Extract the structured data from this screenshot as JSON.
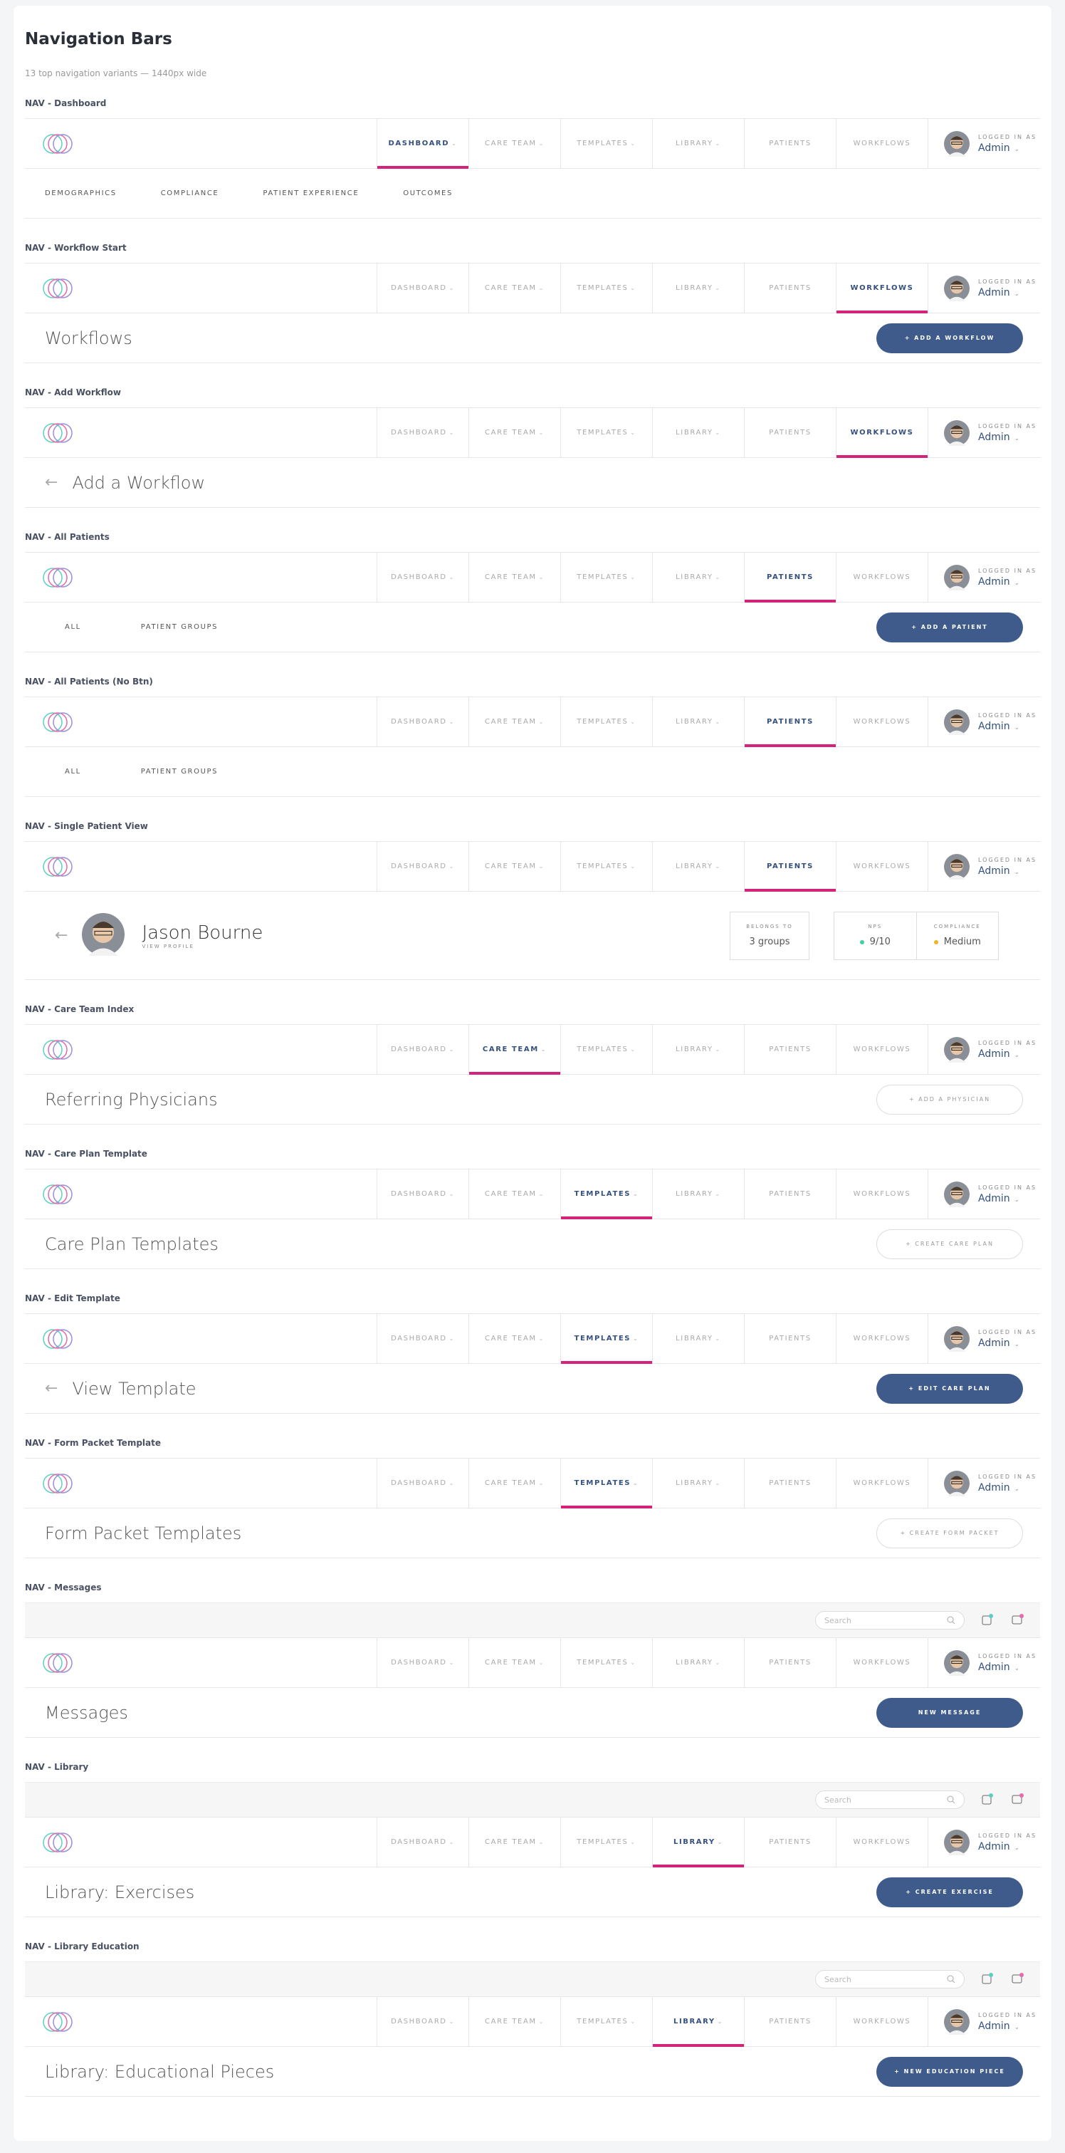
{
  "header": {
    "title": "Navigation Bars",
    "subtitle": "13 top navigation variants — 1440px wide"
  },
  "nav": {
    "tabs": [
      "DASHBOARD",
      "CARE TEAM",
      "TEMPLATES",
      "LIBRARY",
      "PATIENTS",
      "WORKFLOWS"
    ],
    "user_caption": "LOGGED IN AS",
    "user_name": "Admin",
    "search": "Search"
  },
  "sections": [
    {
      "label": "NAV - Dashboard",
      "active": 0,
      "subtabs": [
        "DEMOGRAPHICS",
        "COMPLIANCE",
        "PATIENT EXPERIENCE",
        "OUTCOMES"
      ]
    },
    {
      "label": "NAV - Workflow Start",
      "active": 5,
      "heading": "Workflows",
      "button": {
        "label": "+ ADD A WORKFLOW",
        "style": "filled"
      }
    },
    {
      "label": "NAV - Add Workflow",
      "active": 5,
      "back": true,
      "heading": "Add a Workflow"
    },
    {
      "label": "NAV - All Patients",
      "active": 4,
      "subtabs": [
        "ALL",
        "PATIENT GROUPS"
      ],
      "button": {
        "label": "+ ADD A PATIENT",
        "style": "filled"
      }
    },
    {
      "label": "NAV - All Patients (No Btn)",
      "active": 4,
      "subtabs": [
        "ALL",
        "PATIENT GROUPS"
      ]
    },
    {
      "label": "NAV - Single Patient View",
      "active": 4,
      "patient": {
        "name": "Jason Bourne",
        "link": "VIEW PROFILE",
        "belongs_caption": "BELONGS TO",
        "belongs": "3 groups",
        "nps_caption": "NPS",
        "nps": "9/10",
        "compliance_caption": "COMPLIANCE",
        "compliance": "Medium"
      }
    },
    {
      "label": "NAV - Care Team Index",
      "active": 1,
      "heading": "Referring Physicians",
      "button": {
        "label": "+ ADD A PHYSICIAN",
        "style": "outline"
      }
    },
    {
      "label": "NAV - Care Plan Template",
      "active": 2,
      "heading": "Care Plan Templates",
      "button": {
        "label": "+ CREATE CARE PLAN",
        "style": "outline"
      }
    },
    {
      "label": "NAV - Edit Template",
      "active": 2,
      "back": true,
      "heading": "View Template",
      "button": {
        "label": "+ EDIT CARE PLAN",
        "style": "filled"
      }
    },
    {
      "label": "NAV - Form Packet Template",
      "active": 2,
      "heading": "Form Packet Templates",
      "button": {
        "label": "+ CREATE FORM PACKET",
        "style": "outline"
      }
    },
    {
      "label": "NAV - Messages",
      "active": -1,
      "utility": true,
      "heading": "Messages",
      "button": {
        "label": "NEW MESSAGE",
        "style": "filled"
      }
    },
    {
      "label": "NAV - Library",
      "active": 3,
      "utility": true,
      "heading": "Library: Exercises",
      "button": {
        "label": "+ CREATE EXERCISE",
        "style": "filled"
      }
    },
    {
      "label": "NAV - Library Education",
      "active": 3,
      "utility": true,
      "heading": "Library: Educational Pieces",
      "button": {
        "label": "+ NEW EDUCATION PIECE",
        "style": "filled"
      }
    }
  ]
}
